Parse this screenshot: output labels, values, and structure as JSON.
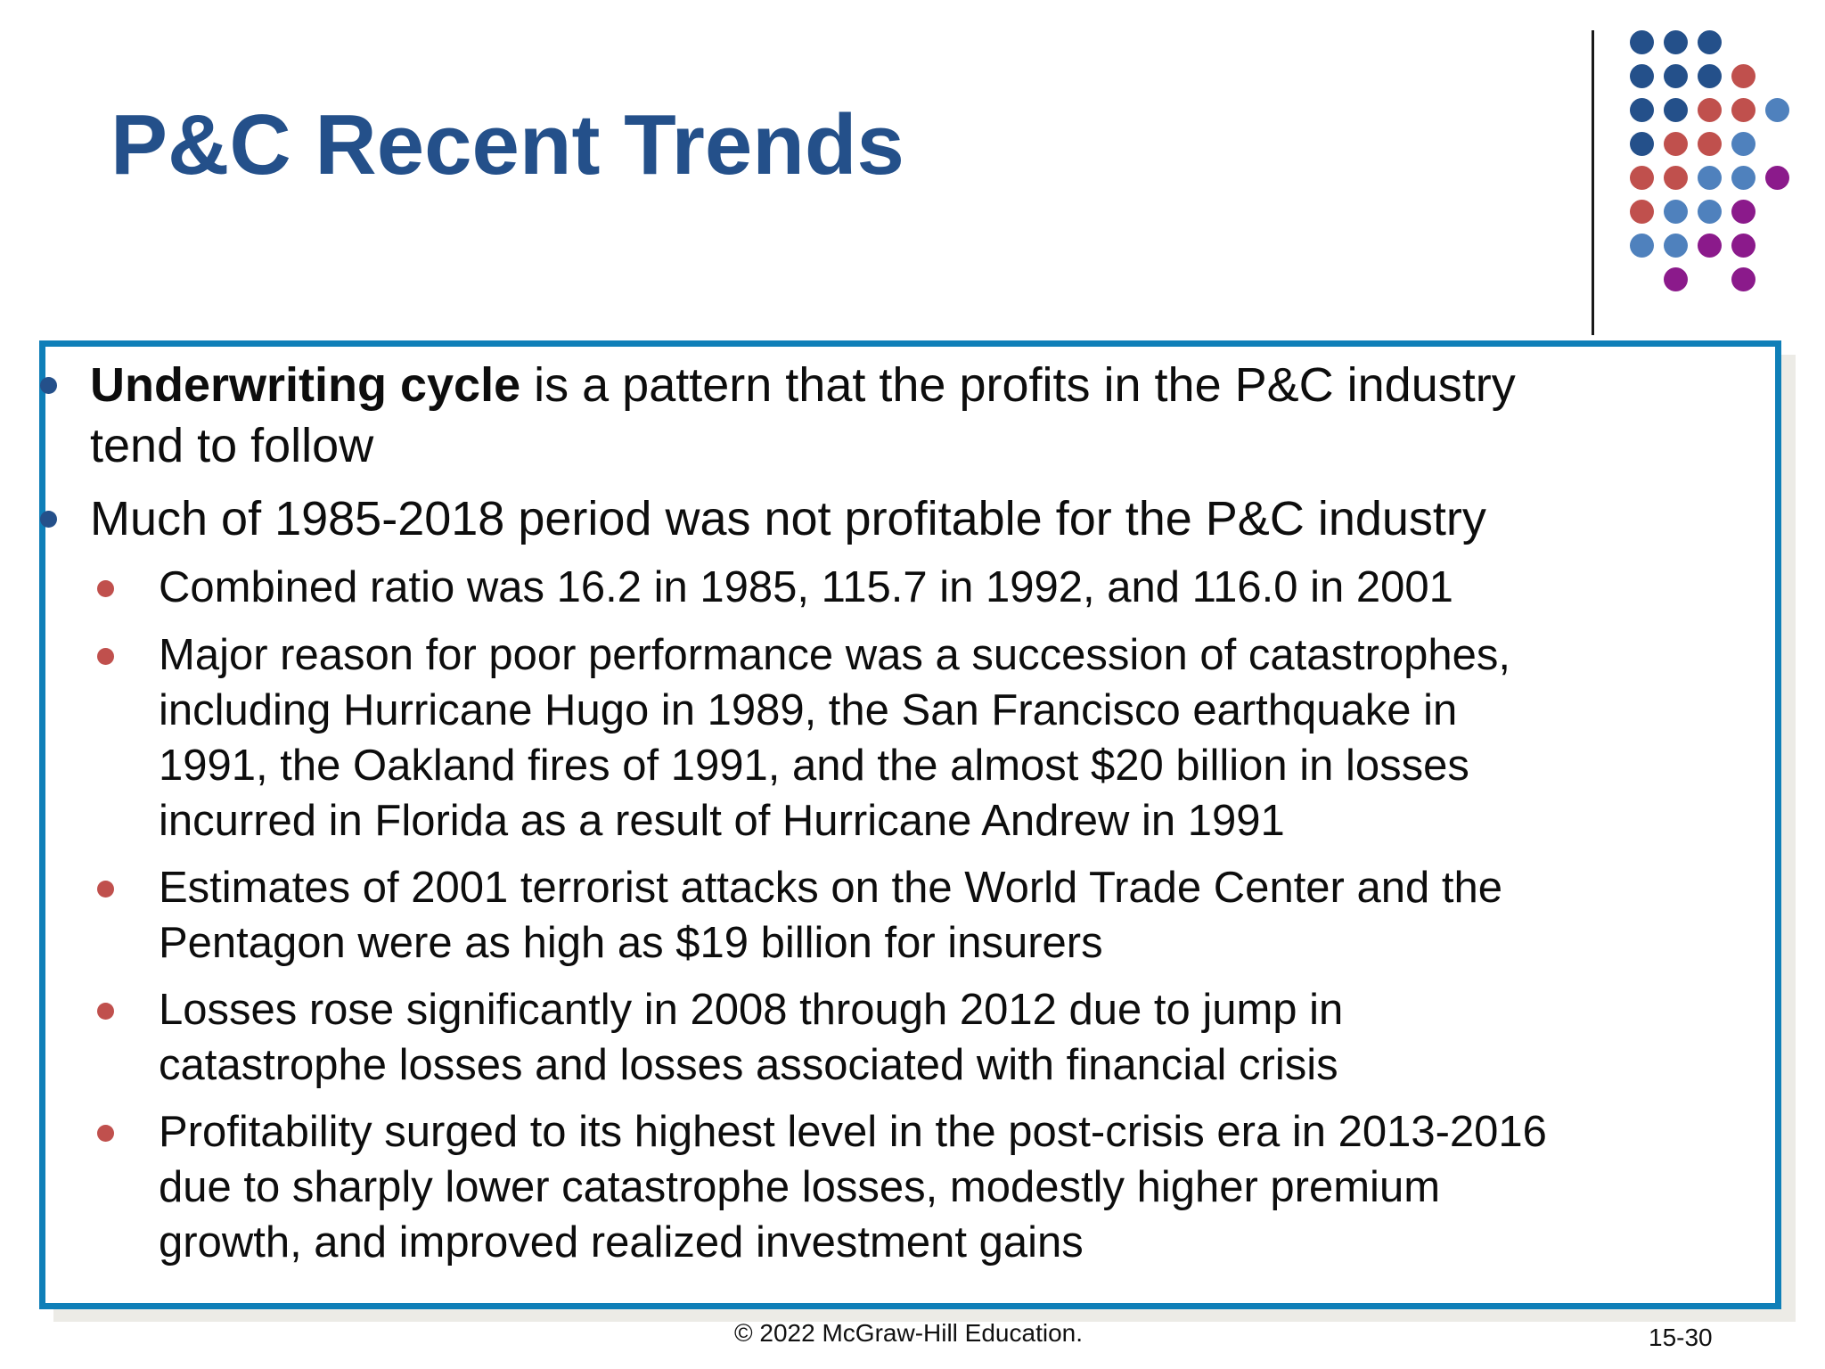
{
  "slide": {
    "title": "P&C Recent Trends"
  },
  "bullets": {
    "b1": {
      "bold": "Underwriting cycle",
      "rest": " is a pattern that the profits in the P&C industry",
      "line2": "tend to follow"
    },
    "b2": {
      "text": "Much of 1985-2018 period was not profitable for the P&C industry",
      "subs": [
        {
          "lines": [
            "Combined ratio was 16.2 in 1985, 115.7 in 1992, and 116.0 in 2001"
          ]
        },
        {
          "lines": [
            "Major reason for poor performance was a succession of catastrophes,",
            "including Hurricane Hugo in 1989, the San Francisco earthquake in",
            "1991, the Oakland fires of 1991, and the almost $20 billion in losses",
            "incurred in Florida as a result of Hurricane Andrew in 1991"
          ]
        },
        {
          "lines": [
            "Estimates of 2001 terrorist attacks on the World Trade Center and the",
            "Pentagon were as high as $19 billion for insurers"
          ]
        },
        {
          "lines": [
            "Losses rose significantly in 2008 through 2012 due to jump in",
            "catastrophe losses and losses associated with financial crisis"
          ]
        },
        {
          "lines": [
            "Profitability surged to its highest level in the post-crisis era in 2013-2016",
            "due to sharply lower catastrophe losses, modestly higher premium",
            "growth, and improved realized investment gains"
          ]
        }
      ]
    }
  },
  "footer": {
    "copyright": "© 2022 McGraw-Hill Education.",
    "page": "15-30"
  },
  "colors": {
    "title": "#24508a",
    "frame": "#0f7fb8",
    "bullet_main": "#24508a",
    "bullet_sub": "#c0504d",
    "dot_navy": "#24508a",
    "dot_red": "#c0504d",
    "dot_light_blue": "#4f81bd",
    "dot_purple": "#8b1a8b"
  },
  "decoration": {
    "dot_grid": [
      [
        "navy",
        "navy",
        "navy",
        null,
        null
      ],
      [
        "navy",
        "navy",
        "navy",
        "red",
        null
      ],
      [
        "navy",
        "navy",
        "red",
        "red",
        "light_blue"
      ],
      [
        "navy",
        "red",
        "red",
        "light_blue",
        null
      ],
      [
        "red",
        "red",
        "light_blue",
        "light_blue",
        "purple"
      ],
      [
        "red",
        "light_blue",
        "light_blue",
        "purple",
        null
      ],
      [
        "light_blue",
        "light_blue",
        "purple",
        "purple",
        null
      ],
      [
        null,
        "purple",
        null,
        "purple",
        null
      ]
    ]
  }
}
